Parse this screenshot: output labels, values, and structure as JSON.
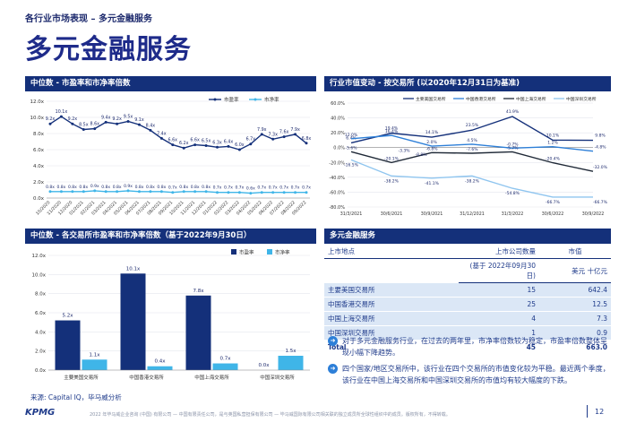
{
  "header": {
    "section_label": "各行业市场表现 – 多元金融服务",
    "title": "多元金融服务"
  },
  "panels": {
    "top_left": "中位数 - 市盈率和市净率倍数",
    "top_right": "行业市值变动 - 按交易所 (以2020年12月31日为基准)",
    "bottom_left": "中位数 - 各交易所市盈率和市净率倍数（基于2022年9月30日）",
    "bottom_right": "多元金融服务"
  },
  "table": {
    "col1_header": "上市地点",
    "col2_header": "上市公司数量",
    "col2_sub": "(基于 2022年09月30日)",
    "col3_header": "市值",
    "col3_sub": "美元 十亿元",
    "rows": [
      {
        "name": "主要美国交易所",
        "count": "15",
        "value": "642.4"
      },
      {
        "name": "中国香港交易所",
        "count": "25",
        "value": "12.5"
      },
      {
        "name": "中国上海交易所",
        "count": "4",
        "value": "7.3"
      },
      {
        "name": "中国深圳交易所",
        "count": "1",
        "value": "0.9"
      }
    ],
    "total": {
      "name": "Total",
      "count": "45",
      "value": "663.0"
    }
  },
  "bullets": [
    "对于多元金融服务行业，在过去的两年里，市净率倍数较为稳定，市盈率倍数整体呈现小幅下降趋势。",
    "四个国家/地区交易所中，该行业在四个交易所的市值变化较为平稳。最近两个季度，该行业在中国上海交易所和中国深圳交易所的市值均有较大幅度的下跌。"
  ],
  "source": "来源: Capital IQ，毕马威分析",
  "footer": {
    "logo": "KPMG",
    "legal": "2022 年毕马威企业咨询 (中国) 有限公司 — 中国有限责任公司，是与英国私营担保有限公司 — 毕马威国际有限公司相关联的独立成员所全球性组织中的成员。版权所有，不得转载。",
    "page_number": "12"
  },
  "colors": {
    "navy": "#14307a",
    "cyan": "#3fb5e8",
    "pe_line": "#14307a",
    "pb_line": "#3fb5e8",
    "us": "#14307a",
    "hk": "#2d7fd8",
    "sh": "#1f2937",
    "sz": "#8fc5ef",
    "table_shade": "#dbe7f6"
  },
  "chart_data": [
    {
      "type": "line",
      "x": [
        "10/2020",
        "11/2020",
        "12/2020",
        "01/2021",
        "02/2021",
        "03/2021",
        "04/2021",
        "05/2021",
        "06/2021",
        "07/2021",
        "08/2021",
        "09/2021",
        "10/2021",
        "11/2021",
        "12/2021",
        "01/2022",
        "02/2022",
        "03/2022",
        "04/2022",
        "05/2022",
        "06/2022",
        "07/2022",
        "08/2022",
        "09/2022"
      ],
      "series": [
        {
          "name": "市盈率",
          "values": [
            9.2,
            10.1,
            9.2,
            8.5,
            8.6,
            9.4,
            9.2,
            9.5,
            9.1,
            8.4,
            7.4,
            6.6,
            6.2,
            6.6,
            6.5,
            6.3,
            6.4,
            6.0,
            6.7,
            7.9,
            7.3,
            7.6,
            7.9,
            6.8
          ]
        },
        {
          "name": "市净率",
          "values": [
            0.8,
            0.8,
            0.8,
            0.8,
            0.9,
            0.8,
            0.8,
            0.9,
            0.8,
            0.8,
            0.8,
            0.7,
            0.8,
            0.8,
            0.8,
            0.7,
            0.7,
            0.7,
            0.6,
            0.7,
            0.7,
            0.7,
            0.7,
            0.7
          ]
        }
      ],
      "data_labels": [
        "9.2x",
        "10.1x",
        "9.2x",
        "8.5x",
        "8.6x",
        "9.4x",
        "9.2x",
        "9.5x",
        "9.1x",
        "8.4x",
        "7.4x",
        "6.6x",
        "6.2x",
        "6.6x",
        "6.5x",
        "6.3x",
        "6.4x",
        "6.0x",
        "6.7x",
        "7.9x",
        "7.3x",
        "7.6x",
        "7.9x",
        "6.8x"
      ],
      "pb_labels": [
        "0.8x",
        "0.8x",
        "0.8x",
        "0.8x",
        "0.9x",
        "0.8x",
        "0.8x",
        "0.9x",
        "0.8x",
        "0.8x",
        "0.8x",
        "0.7x",
        "0.8x",
        "0.8x",
        "0.8x",
        "0.7x",
        "0.7x",
        "0.7x",
        "0.6x",
        "0.7x",
        "0.7x",
        "0.7x",
        "0.7x",
        "0.7x"
      ],
      "y_ticks": [
        "0.0x",
        "2.0x",
        "4.0x",
        "6.0x",
        "8.0x",
        "10.0x",
        "12.0x"
      ],
      "ylim": [
        0,
        12
      ],
      "legend_position": "top-right",
      "grid": true
    },
    {
      "type": "line",
      "x": [
        "31/3/2021",
        "30/6/2021",
        "30/9/2021",
        "31/12/2021",
        "31/3/2022",
        "30/6/2022",
        "30/9/2022"
      ],
      "series": [
        {
          "name": "主要美国交易所",
          "values": [
            6.4,
            19.4,
            14.1,
            23.5,
            41.9,
            10.1,
            9.8
          ]
        },
        {
          "name": "中国香港交易所",
          "values": [
            12.0,
            16.4,
            2.0,
            4.5,
            -0.7,
            1.2,
            -4.8
          ]
        },
        {
          "name": "中国上海交易所",
          "values": [
            -5.6,
            -20.1,
            -6.8,
            -7.6,
            -5.7,
            -20.4,
            -32.0
          ]
        },
        {
          "name": "中国深圳交易所",
          "values": [
            -16.5,
            -38.2,
            -41.1,
            -38.2,
            -54.8,
            -66.7,
            -66.7
          ]
        }
      ],
      "extra_labels": [
        "-3.3%",
        "-8.8%"
      ],
      "y_ticks": [
        "-80.0%",
        "-60.0%",
        "-40.0%",
        "-20.0%",
        "0.0%",
        "20.0%",
        "40.0%",
        "60.0%"
      ],
      "ylim": [
        -80,
        60
      ],
      "legend_position": "top",
      "grid": true
    },
    {
      "type": "bar",
      "categories": [
        "主要美国交易所",
        "中国香港交易所",
        "中国上海交易所",
        "中国深圳交易所"
      ],
      "series": [
        {
          "name": "市盈率",
          "values": [
            5.2,
            10.1,
            7.8,
            0.0
          ]
        },
        {
          "name": "市净率",
          "values": [
            1.1,
            0.4,
            0.7,
            1.5
          ]
        }
      ],
      "pe_labels": [
        "5.2x",
        "10.1x",
        "7.8x",
        "0.0x"
      ],
      "pb_labels": [
        "1.1x",
        "0.4x",
        "0.7x",
        "1.5x"
      ],
      "y_ticks": [
        "0.0x",
        "2.0x",
        "4.0x",
        "6.0x",
        "8.0x",
        "10.0x",
        "12.0x"
      ],
      "ylim": [
        0,
        12
      ],
      "legend_position": "top-right",
      "grid": true
    }
  ]
}
